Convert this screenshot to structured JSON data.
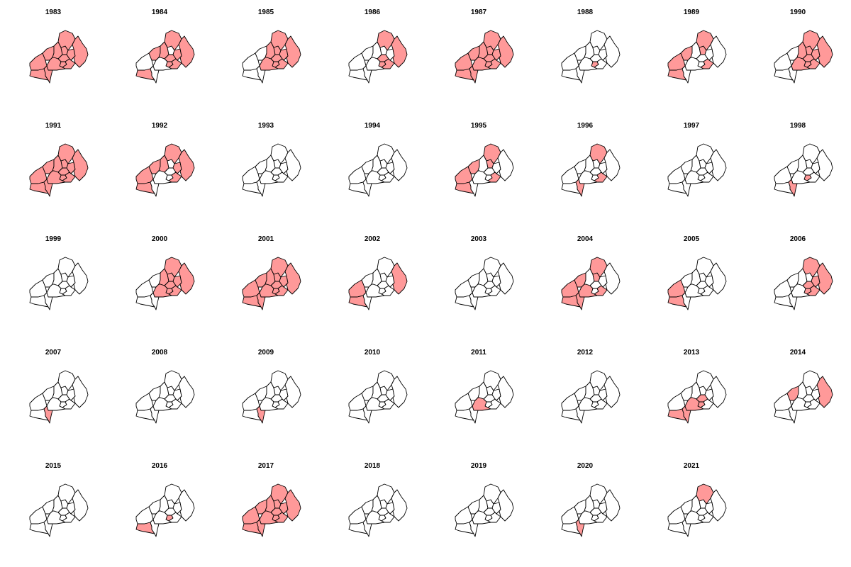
{
  "colors": {
    "highlight": "#ff9999",
    "base": "#ffffff",
    "stroke": "#000000"
  },
  "map": {
    "regions": [
      "R1",
      "R2",
      "R3",
      "R4",
      "R5",
      "R6",
      "R7",
      "R8",
      "R9",
      "R10",
      "R11",
      "R12",
      "R13"
    ]
  },
  "panels": [
    {
      "year": "1983",
      "highlighted": [
        "R1",
        "R2",
        "R3",
        "R4",
        "R5",
        "R6",
        "R7",
        "R8",
        "R9",
        "R10",
        "R11",
        "R12",
        "R13"
      ]
    },
    {
      "year": "1984",
      "highlighted": [
        "R2",
        "R3",
        "R4",
        "R6",
        "R7",
        "R8",
        "R9",
        "R10",
        "R11"
      ]
    },
    {
      "year": "1985",
      "highlighted": [
        "R4",
        "R5",
        "R6",
        "R7",
        "R8",
        "R9",
        "R10",
        "R11",
        "R12"
      ]
    },
    {
      "year": "1986",
      "highlighted": [
        "R6",
        "R7",
        "R8",
        "R10",
        "R11"
      ]
    },
    {
      "year": "1987",
      "highlighted": [
        "R1",
        "R2",
        "R3",
        "R4",
        "R5",
        "R6",
        "R7",
        "R8",
        "R9",
        "R10",
        "R11",
        "R12",
        "R13"
      ]
    },
    {
      "year": "1988",
      "highlighted": [
        "R8"
      ]
    },
    {
      "year": "1989",
      "highlighted": [
        "R1",
        "R2",
        "R3",
        "R5",
        "R6",
        "R11"
      ]
    },
    {
      "year": "1990",
      "highlighted": [
        "R4",
        "R5",
        "R6",
        "R7",
        "R8",
        "R9",
        "R10",
        "R11",
        "R12"
      ]
    },
    {
      "year": "1991",
      "highlighted": [
        "R1",
        "R2",
        "R3",
        "R4",
        "R5",
        "R6",
        "R7",
        "R8",
        "R9",
        "R10",
        "R11",
        "R12",
        "R13"
      ]
    },
    {
      "year": "1992",
      "highlighted": [
        "R1",
        "R2",
        "R3",
        "R4",
        "R6",
        "R9",
        "R10",
        "R11"
      ]
    },
    {
      "year": "1993",
      "highlighted": []
    },
    {
      "year": "1994",
      "highlighted": []
    },
    {
      "year": "1995",
      "highlighted": [
        "R1",
        "R2",
        "R3",
        "R5",
        "R6",
        "R11"
      ]
    },
    {
      "year": "1996",
      "highlighted": [
        "R6",
        "R11",
        "R13"
      ]
    },
    {
      "year": "1997",
      "highlighted": []
    },
    {
      "year": "1998",
      "highlighted": [
        "R8",
        "R13"
      ]
    },
    {
      "year": "1999",
      "highlighted": []
    },
    {
      "year": "2000",
      "highlighted": [
        "R4",
        "R5",
        "R6",
        "R7",
        "R8",
        "R9",
        "R10",
        "R11",
        "R12"
      ]
    },
    {
      "year": "2001",
      "highlighted": [
        "R1",
        "R2",
        "R3",
        "R4",
        "R5",
        "R6",
        "R7",
        "R8",
        "R9",
        "R10",
        "R11",
        "R12",
        "R13"
      ]
    },
    {
      "year": "2002",
      "highlighted": [
        "R1",
        "R3",
        "R10"
      ]
    },
    {
      "year": "2003",
      "highlighted": []
    },
    {
      "year": "2004",
      "highlighted": [
        "R1",
        "R2",
        "R3",
        "R5",
        "R6",
        "R11",
        "R12",
        "R13"
      ]
    },
    {
      "year": "2005",
      "highlighted": [
        "R1",
        "R3"
      ]
    },
    {
      "year": "2006",
      "highlighted": [
        "R6",
        "R7",
        "R8",
        "R9",
        "R10",
        "R11"
      ]
    },
    {
      "year": "2007",
      "highlighted": [
        "R13"
      ]
    },
    {
      "year": "2008",
      "highlighted": []
    },
    {
      "year": "2009",
      "highlighted": [
        "R13"
      ]
    },
    {
      "year": "2010",
      "highlighted": []
    },
    {
      "year": "2011",
      "highlighted": [
        "R12"
      ]
    },
    {
      "year": "2012",
      "highlighted": []
    },
    {
      "year": "2013",
      "highlighted": [
        "R3",
        "R7",
        "R8",
        "R12",
        "R13"
      ]
    },
    {
      "year": "2014",
      "highlighted": [
        "R2",
        "R10"
      ]
    },
    {
      "year": "2015",
      "highlighted": []
    },
    {
      "year": "2016",
      "highlighted": [
        "R3",
        "R8"
      ]
    },
    {
      "year": "2017",
      "highlighted": [
        "R1",
        "R2",
        "R3",
        "R4",
        "R5",
        "R6",
        "R7",
        "R8",
        "R9",
        "R10",
        "R11",
        "R12",
        "R13"
      ]
    },
    {
      "year": "2018",
      "highlighted": []
    },
    {
      "year": "2019",
      "highlighted": []
    },
    {
      "year": "2020",
      "highlighted": [
        "R13"
      ]
    },
    {
      "year": "2021",
      "highlighted": [
        "R6"
      ]
    }
  ]
}
